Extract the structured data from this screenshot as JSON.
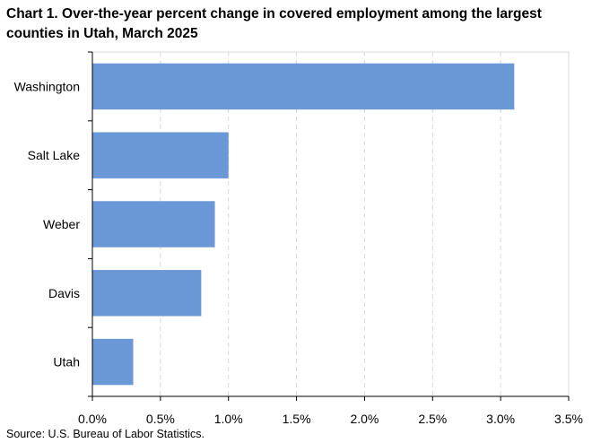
{
  "chart_data": {
    "type": "bar",
    "orientation": "horizontal",
    "title": "Chart 1. Over-the-year percent change in covered employment among the largest counties in Utah, March 2025",
    "source": "Source: U.S. Bureau of Labor Statistics.",
    "categories": [
      "Washington",
      "Salt Lake",
      "Weber",
      "Davis",
      "Utah"
    ],
    "values": [
      3.1,
      1.0,
      0.9,
      0.8,
      0.3
    ],
    "xlim": [
      0,
      3.5
    ],
    "xticks": [
      0,
      0.5,
      1.0,
      1.5,
      2.0,
      2.5,
      3.0,
      3.5
    ],
    "xtick_labels": [
      "0.0%",
      "0.5%",
      "1.0%",
      "1.5%",
      "2.0%",
      "2.5%",
      "3.0%",
      "3.5%"
    ],
    "xlabel": "",
    "ylabel": "",
    "grid": "vertical dashed",
    "legend": "none",
    "bar_color": "#6a98d6",
    "grid_color": "#d9d9d9",
    "axis_color": "#000000"
  }
}
